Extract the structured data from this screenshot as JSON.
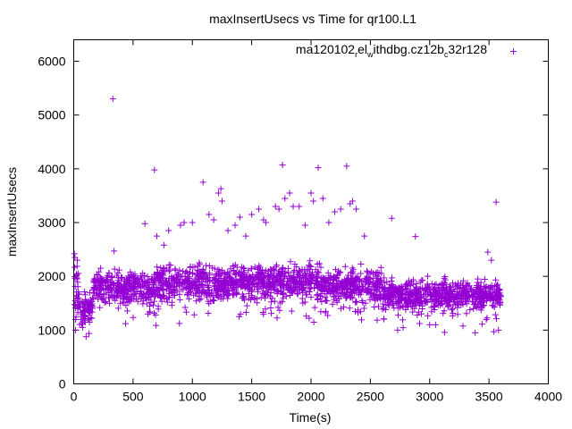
{
  "chart_data": {
    "type": "scatter",
    "title": "maxInsertUsecs vs Time for qr100.L1",
    "xlabel": "Time(s)",
    "ylabel": "maxInsertUsecs",
    "xlim": [
      0,
      4000
    ],
    "ylim": [
      0,
      6400
    ],
    "xticks": [
      "0",
      "500",
      "1000",
      "1500",
      "2000",
      "2500",
      "3000",
      "3500",
      "4000"
    ],
    "yticks": [
      "0",
      "1000",
      "2000",
      "3000",
      "4000",
      "5000",
      "6000"
    ],
    "grid": false,
    "legend_position": "top-right",
    "series": [
      {
        "name_parts": [
          "ma120102",
          "r",
          "el",
          "w",
          "ithdbg.cz12b",
          "c",
          "32r128"
        ],
        "color": "#9400d3",
        "marker": "plus",
        "pattern": {
          "x_range": [
            0,
            3600
          ],
          "segments": [
            {
              "x_from": 0,
              "x_to": 40,
              "y_mean": 1750,
              "y_spread": 380
            },
            {
              "x_from": 40,
              "x_to": 160,
              "y_mean": 1400,
              "y_spread": 260
            },
            {
              "x_from": 160,
              "x_to": 700,
              "y_mean": 1780,
              "y_spread": 260
            },
            {
              "x_from": 700,
              "x_to": 1300,
              "y_mean": 1880,
              "y_spread": 300
            },
            {
              "x_from": 1300,
              "x_to": 2100,
              "y_mean": 1900,
              "y_spread": 280
            },
            {
              "x_from": 2100,
              "x_to": 2600,
              "y_mean": 1820,
              "y_spread": 270
            },
            {
              "x_from": 2600,
              "x_to": 3600,
              "y_mean": 1650,
              "y_spread": 230
            }
          ]
        },
        "points": [
          [
            5,
            2420
          ],
          [
            10,
            2350
          ],
          [
            15,
            1000
          ],
          [
            30,
            2300
          ],
          [
            60,
            1200
          ],
          [
            75,
            1050
          ],
          [
            330,
            5300
          ],
          [
            340,
            2470
          ],
          [
            600,
            2980
          ],
          [
            680,
            3980
          ],
          [
            700,
            2750
          ],
          [
            760,
            2580
          ],
          [
            800,
            2850
          ],
          [
            900,
            2950
          ],
          [
            930,
            3000
          ],
          [
            1000,
            3000
          ],
          [
            1090,
            3750
          ],
          [
            1140,
            3150
          ],
          [
            1180,
            3050
          ],
          [
            1220,
            3550
          ],
          [
            1240,
            3630
          ],
          [
            1250,
            3400
          ],
          [
            1300,
            2850
          ],
          [
            1360,
            2950
          ],
          [
            1400,
            3100
          ],
          [
            1450,
            2750
          ],
          [
            1500,
            3150
          ],
          [
            1560,
            3250
          ],
          [
            1600,
            3050
          ],
          [
            1620,
            3000
          ],
          [
            1700,
            3300
          ],
          [
            1730,
            3250
          ],
          [
            1760,
            4070
          ],
          [
            1780,
            3450
          ],
          [
            1820,
            3550
          ],
          [
            1850,
            3300
          ],
          [
            1900,
            3300
          ],
          [
            1950,
            2950
          ],
          [
            2000,
            3550
          ],
          [
            2020,
            3400
          ],
          [
            2060,
            4020
          ],
          [
            2100,
            3450
          ],
          [
            2150,
            3000
          ],
          [
            2200,
            3200
          ],
          [
            2250,
            3250
          ],
          [
            2300,
            4050
          ],
          [
            2330,
            3350
          ],
          [
            2350,
            3400
          ],
          [
            2380,
            3250
          ],
          [
            2450,
            2750
          ],
          [
            2680,
            3080
          ],
          [
            2730,
            1000
          ],
          [
            2880,
            2740
          ],
          [
            3000,
            1100
          ],
          [
            3050,
            1100
          ],
          [
            3490,
            2450
          ],
          [
            3520,
            2300
          ],
          [
            3540,
            970
          ],
          [
            3560,
            3380
          ],
          [
            3580,
            1000
          ]
        ]
      }
    ]
  }
}
